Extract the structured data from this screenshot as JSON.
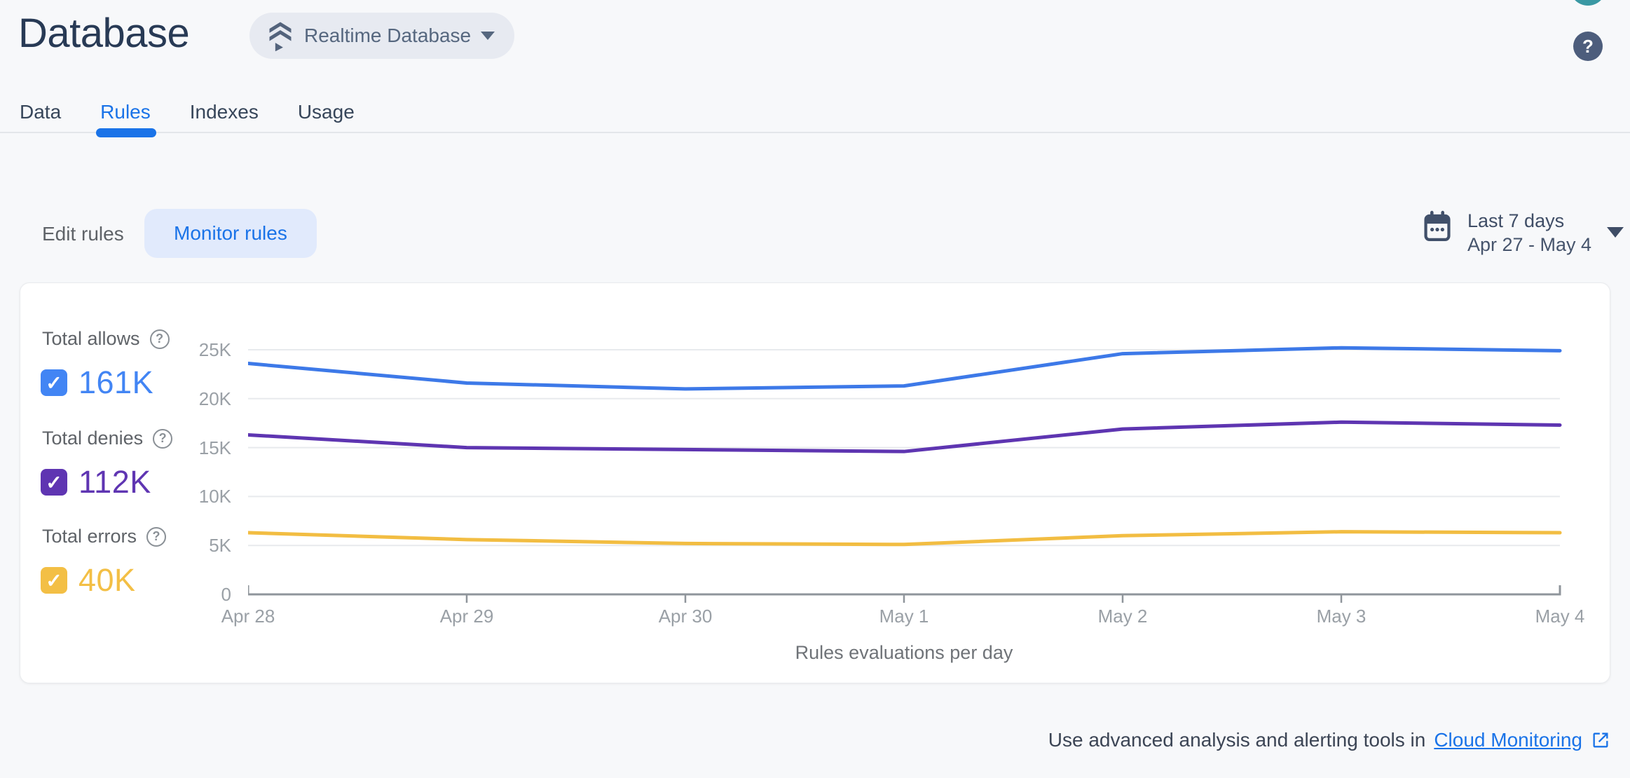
{
  "header": {
    "title": "Database",
    "product_selector": {
      "label": "Realtime Database"
    },
    "help_label": "?"
  },
  "tabs": [
    {
      "label": "Data",
      "active": false
    },
    {
      "label": "Rules",
      "active": true
    },
    {
      "label": "Indexes",
      "active": false
    },
    {
      "label": "Usage",
      "active": false
    }
  ],
  "toolbar": {
    "edit_rules_label": "Edit rules",
    "monitor_rules_label": "Monitor rules",
    "date_range": {
      "primary": "Last 7 days",
      "secondary": "Apr 27 - May 4"
    }
  },
  "legend": [
    {
      "label": "Total allows",
      "value": "161K",
      "color": "#4285f4",
      "checked": true
    },
    {
      "label": "Total denies",
      "value": "112K",
      "color": "#5f35b2",
      "checked": true
    },
    {
      "label": "Total errors",
      "value": "40K",
      "color": "#f3bf45",
      "checked": true
    }
  ],
  "chart_data": {
    "type": "line",
    "title": "Rules evaluations per day",
    "categories": [
      "Apr 28",
      "Apr 29",
      "Apr 30",
      "May 1",
      "May 2",
      "May 3",
      "May 4"
    ],
    "series": [
      {
        "name": "Total allows",
        "color": "#3d79e8",
        "values": [
          23600,
          21600,
          21000,
          21300,
          24600,
          25200,
          24900
        ]
      },
      {
        "name": "Total denies",
        "color": "#5e35b1",
        "values": [
          16300,
          15000,
          14800,
          14600,
          16900,
          17600,
          17300
        ]
      },
      {
        "name": "Total errors",
        "color": "#f2bd42",
        "values": [
          6300,
          5600,
          5200,
          5100,
          6000,
          6400,
          6300
        ]
      }
    ],
    "ylim": [
      0,
      26000
    ],
    "yticks": [
      {
        "label": "0",
        "value": 0
      },
      {
        "label": "5K",
        "value": 5000
      },
      {
        "label": "10K",
        "value": 10000
      },
      {
        "label": "15K",
        "value": 15000
      },
      {
        "label": "20K",
        "value": 20000
      },
      {
        "label": "25K",
        "value": 25000
      }
    ],
    "grid": true,
    "legend_position": "left"
  },
  "footer": {
    "text": "Use advanced analysis and alerting tools in",
    "link_label": "Cloud Monitoring"
  }
}
